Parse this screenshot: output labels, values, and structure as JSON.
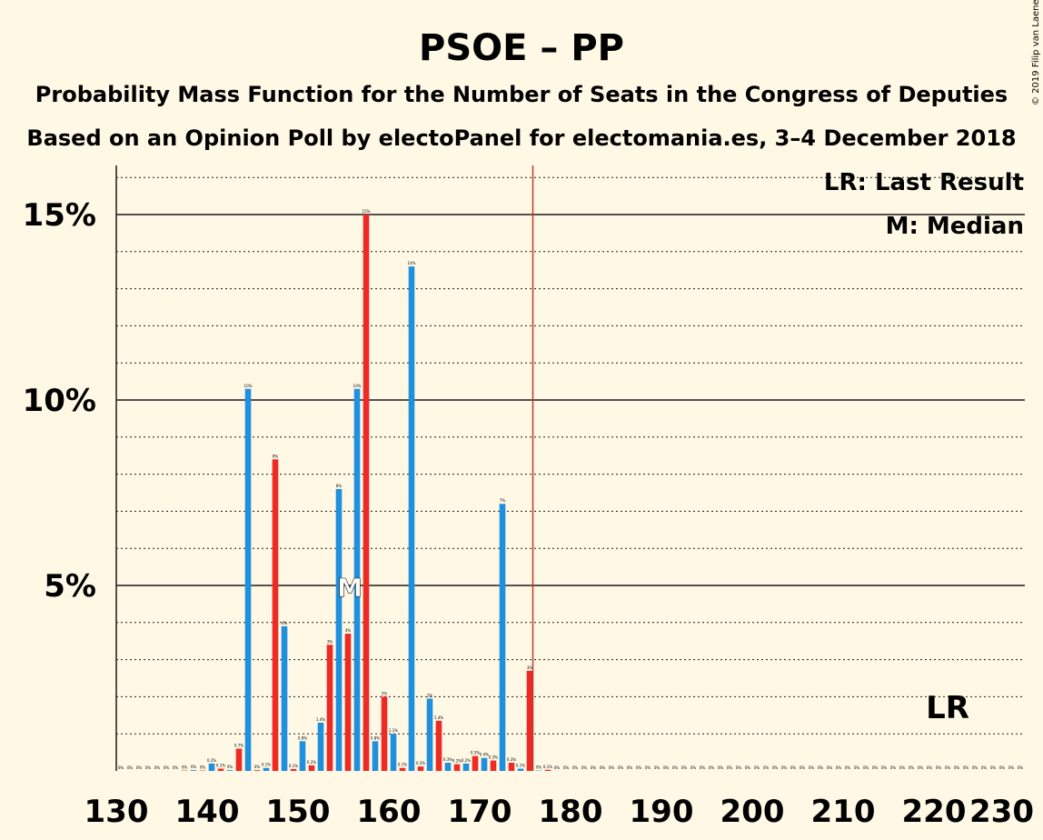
{
  "chart_data": {
    "type": "bar",
    "title": "PSOE – PP",
    "subtitle": "Probability Mass Function for the Number of Seats in the Congress of Deputies",
    "subtitle2": "Based on an Opinion Poll by electoPanel for electomania.es, 3–4 December 2018",
    "copyright": "© 2019 Filip van Laenen",
    "xlim": [
      130,
      230
    ],
    "ylim": [
      0,
      16.5
    ],
    "x_ticks": [
      130,
      140,
      150,
      160,
      170,
      180,
      190,
      200,
      210,
      220,
      230
    ],
    "y_ticks": [
      {
        "value": 5,
        "label": "5%"
      },
      {
        "value": 10,
        "label": "10%"
      },
      {
        "value": 15,
        "label": "15%"
      }
    ],
    "minor_gridlines": [
      1,
      2,
      3,
      4,
      6,
      7,
      8,
      9,
      11,
      12,
      13,
      14,
      16
    ],
    "legend": {
      "lr": "LR: Last Result",
      "m": "M: Median"
    },
    "median": {
      "x": 156,
      "label": "M"
    },
    "last_result": {
      "x": 176,
      "label": "LR"
    },
    "colors": {
      "blue": "#1E90DD",
      "red": "#EE2A24",
      "background": "#FFF8E5",
      "lr_line": "#C0392B"
    },
    "bars": [
      {
        "x": 130,
        "value": 0,
        "label": "0%",
        "color": "blue"
      },
      {
        "x": 131,
        "value": 0,
        "label": "0%",
        "color": "red"
      },
      {
        "x": 132,
        "value": 0,
        "label": "0%",
        "color": "blue"
      },
      {
        "x": 133,
        "value": 0,
        "label": "0%",
        "color": "red"
      },
      {
        "x": 134,
        "value": 0,
        "label": "0%",
        "color": "blue"
      },
      {
        "x": 135,
        "value": 0,
        "label": "0%",
        "color": "red"
      },
      {
        "x": 136,
        "value": 0,
        "label": "0%",
        "color": "blue"
      },
      {
        "x": 137,
        "value": 0.01,
        "label": "0%",
        "color": "red"
      },
      {
        "x": 138,
        "value": 0.02,
        "label": "0%",
        "color": "blue"
      },
      {
        "x": 139,
        "value": 0.01,
        "label": "0%",
        "color": "red"
      },
      {
        "x": 140,
        "value": 0.2,
        "label": "0.2%",
        "color": "blue"
      },
      {
        "x": 141,
        "value": 0.06,
        "label": "0.1%",
        "color": "red"
      },
      {
        "x": 142,
        "value": 0.02,
        "label": "0%",
        "color": "blue"
      },
      {
        "x": 143,
        "value": 0.6,
        "label": "0.7%",
        "color": "red"
      },
      {
        "x": 144,
        "value": 10.3,
        "label": "10%",
        "color": "blue"
      },
      {
        "x": 145,
        "value": 0.02,
        "label": "0%",
        "color": "red"
      },
      {
        "x": 146,
        "value": 0.08,
        "label": "0.1%",
        "color": "blue"
      },
      {
        "x": 147,
        "value": 8.4,
        "label": "8%",
        "color": "red"
      },
      {
        "x": 148,
        "value": 3.9,
        "label": "4%",
        "color": "blue"
      },
      {
        "x": 149,
        "value": 0.05,
        "label": "0.1%",
        "color": "red"
      },
      {
        "x": 150,
        "value": 0.8,
        "label": "0.8%",
        "color": "blue"
      },
      {
        "x": 151,
        "value": 0.15,
        "label": "0.2%",
        "color": "red"
      },
      {
        "x": 152,
        "value": 1.3,
        "label": "1.4%",
        "color": "blue"
      },
      {
        "x": 153,
        "value": 3.4,
        "label": "3%",
        "color": "red"
      },
      {
        "x": 154,
        "value": 7.6,
        "label": "8%",
        "color": "blue"
      },
      {
        "x": 155,
        "value": 3.7,
        "label": "4%",
        "color": "red"
      },
      {
        "x": 156,
        "value": 10.3,
        "label": "10%",
        "color": "blue"
      },
      {
        "x": 157,
        "value": 15.0,
        "label": "15%",
        "color": "red"
      },
      {
        "x": 158,
        "value": 0.8,
        "label": "0.8%",
        "color": "blue"
      },
      {
        "x": 159,
        "value": 2.0,
        "label": "2%",
        "color": "red"
      },
      {
        "x": 160,
        "value": 1.0,
        "label": "1.1%",
        "color": "blue"
      },
      {
        "x": 161,
        "value": 0.08,
        "label": "0.1%",
        "color": "red"
      },
      {
        "x": 162,
        "value": 13.6,
        "label": "14%",
        "color": "blue"
      },
      {
        "x": 163,
        "value": 0.12,
        "label": "0.2%",
        "color": "red"
      },
      {
        "x": 164,
        "value": 1.95,
        "label": "2%",
        "color": "blue"
      },
      {
        "x": 165,
        "value": 1.35,
        "label": "1.4%",
        "color": "red"
      },
      {
        "x": 166,
        "value": 0.22,
        "label": "0.3%",
        "color": "blue"
      },
      {
        "x": 167,
        "value": 0.18,
        "label": "0.2%",
        "color": "red"
      },
      {
        "x": 168,
        "value": 0.2,
        "label": "0.2%",
        "color": "blue"
      },
      {
        "x": 169,
        "value": 0.4,
        "label": "0.5%",
        "color": "red"
      },
      {
        "x": 170,
        "value": 0.35,
        "label": "0.4%",
        "color": "blue"
      },
      {
        "x": 171,
        "value": 0.28,
        "label": "0.3%",
        "color": "red"
      },
      {
        "x": 172,
        "value": 7.2,
        "label": "7%",
        "color": "blue"
      },
      {
        "x": 173,
        "value": 0.22,
        "label": "0.3%",
        "color": "red"
      },
      {
        "x": 174,
        "value": 0.06,
        "label": "0.1%",
        "color": "blue"
      },
      {
        "x": 175,
        "value": 2.7,
        "label": "3%",
        "color": "red"
      },
      {
        "x": 176,
        "value": 0.01,
        "label": "0%",
        "color": "blue"
      },
      {
        "x": 177,
        "value": 0.03,
        "label": "0.1%",
        "color": "red"
      },
      {
        "x": 178,
        "value": 0,
        "label": "0%",
        "color": "blue"
      },
      {
        "x": 179,
        "value": 0,
        "label": "0%",
        "color": "red"
      },
      {
        "x": 180,
        "value": 0,
        "label": "0%",
        "color": "blue"
      },
      {
        "x": 181,
        "value": 0,
        "label": "0%",
        "color": "red"
      },
      {
        "x": 182,
        "value": 0,
        "label": "0%",
        "color": "blue"
      },
      {
        "x": 183,
        "value": 0,
        "label": "0%",
        "color": "red"
      },
      {
        "x": 184,
        "value": 0,
        "label": "0%",
        "color": "blue"
      },
      {
        "x": 185,
        "value": 0,
        "label": "0%",
        "color": "red"
      },
      {
        "x": 186,
        "value": 0,
        "label": "0%",
        "color": "blue"
      },
      {
        "x": 187,
        "value": 0,
        "label": "0%",
        "color": "red"
      },
      {
        "x": 188,
        "value": 0,
        "label": "0%",
        "color": "blue"
      },
      {
        "x": 189,
        "value": 0,
        "label": "0%",
        "color": "red"
      },
      {
        "x": 190,
        "value": 0,
        "label": "0%",
        "color": "blue"
      },
      {
        "x": 191,
        "value": 0,
        "label": "0%",
        "color": "red"
      },
      {
        "x": 192,
        "value": 0,
        "label": "0%",
        "color": "blue"
      },
      {
        "x": 193,
        "value": 0,
        "label": "0%",
        "color": "red"
      },
      {
        "x": 194,
        "value": 0,
        "label": "0%",
        "color": "blue"
      },
      {
        "x": 195,
        "value": 0,
        "label": "0%",
        "color": "red"
      },
      {
        "x": 196,
        "value": 0,
        "label": "0%",
        "color": "blue"
      },
      {
        "x": 197,
        "value": 0,
        "label": "0%",
        "color": "red"
      },
      {
        "x": 198,
        "value": 0,
        "label": "0%",
        "color": "blue"
      },
      {
        "x": 199,
        "value": 0,
        "label": "0%",
        "color": "red"
      },
      {
        "x": 200,
        "value": 0,
        "label": "0%",
        "color": "blue"
      },
      {
        "x": 201,
        "value": 0,
        "label": "0%",
        "color": "red"
      },
      {
        "x": 202,
        "value": 0,
        "label": "0%",
        "color": "blue"
      },
      {
        "x": 203,
        "value": 0,
        "label": "0%",
        "color": "red"
      },
      {
        "x": 204,
        "value": 0,
        "label": "0%",
        "color": "blue"
      },
      {
        "x": 205,
        "value": 0,
        "label": "0%",
        "color": "red"
      },
      {
        "x": 206,
        "value": 0,
        "label": "0%",
        "color": "blue"
      },
      {
        "x": 207,
        "value": 0,
        "label": "0%",
        "color": "red"
      },
      {
        "x": 208,
        "value": 0,
        "label": "0%",
        "color": "blue"
      },
      {
        "x": 209,
        "value": 0,
        "label": "0%",
        "color": "red"
      },
      {
        "x": 210,
        "value": 0,
        "label": "0%",
        "color": "blue"
      },
      {
        "x": 211,
        "value": 0,
        "label": "0%",
        "color": "red"
      },
      {
        "x": 212,
        "value": 0,
        "label": "0%",
        "color": "blue"
      },
      {
        "x": 213,
        "value": 0,
        "label": "0%",
        "color": "red"
      },
      {
        "x": 214,
        "value": 0,
        "label": "0%",
        "color": "blue"
      },
      {
        "x": 215,
        "value": 0,
        "label": "0%",
        "color": "red"
      },
      {
        "x": 216,
        "value": 0,
        "label": "0%",
        "color": "blue"
      },
      {
        "x": 217,
        "value": 0,
        "label": "0%",
        "color": "red"
      },
      {
        "x": 218,
        "value": 0,
        "label": "0%",
        "color": "blue"
      },
      {
        "x": 219,
        "value": 0,
        "label": "0%",
        "color": "red"
      },
      {
        "x": 220,
        "value": 0,
        "label": "0%",
        "color": "blue"
      },
      {
        "x": 221,
        "value": 0,
        "label": "0%",
        "color": "red"
      },
      {
        "x": 222,
        "value": 0,
        "label": "0%",
        "color": "blue"
      },
      {
        "x": 223,
        "value": 0,
        "label": "0%",
        "color": "red"
      },
      {
        "x": 224,
        "value": 0,
        "label": "0%",
        "color": "blue"
      },
      {
        "x": 225,
        "value": 0,
        "label": "0%",
        "color": "red"
      },
      {
        "x": 226,
        "value": 0,
        "label": "0%",
        "color": "blue"
      },
      {
        "x": 227,
        "value": 0,
        "label": "0%",
        "color": "red"
      },
      {
        "x": 228,
        "value": 0,
        "label": "0%",
        "color": "blue"
      },
      {
        "x": 229,
        "value": 0,
        "label": "0%",
        "color": "red"
      }
    ]
  }
}
